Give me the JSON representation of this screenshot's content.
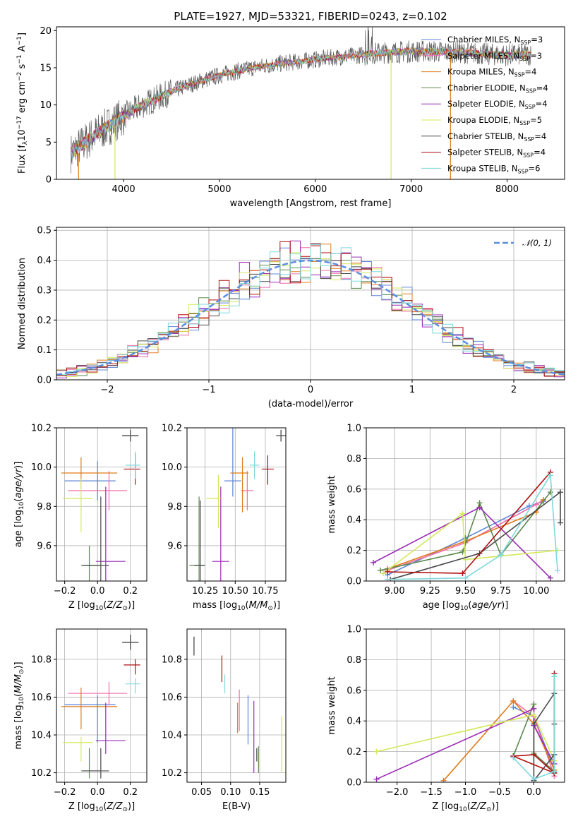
{
  "figure": {
    "title": "PLATE=1927, MJD=53321, FIBERID=0243, z=0.102"
  },
  "models": [
    {
      "name": "Chabrier MILES",
      "nssp": "3",
      "color": "#5b84d6"
    },
    {
      "name": "Salpeter MILES",
      "nssp": "3",
      "color": "#f06ea9"
    },
    {
      "name": "Kroupa MILES",
      "nssp": "4",
      "color": "#e07b1a"
    },
    {
      "name": "Chabrier ELODIE",
      "nssp": "4",
      "color": "#5c8a4e"
    },
    {
      "name": "Salpeter ELODIE",
      "nssp": "4",
      "color": "#9a2cb5"
    },
    {
      "name": "Kroupa ELODIE",
      "nssp": "5",
      "color": "#d4e85a"
    },
    {
      "name": "Chabrier STELIB",
      "nssp": "4",
      "color": "#4a4a4a"
    },
    {
      "name": "Salpeter STELIB",
      "nssp": "4",
      "color": "#b00f0f"
    },
    {
      "name": "Kroupa STELIB",
      "nssp": "6",
      "color": "#7fd8dc"
    }
  ],
  "chart_data": [
    {
      "id": "spectrum",
      "type": "line",
      "xlabel": "wavelength [Angstrom, rest frame]",
      "ylabel": "Flux [fλ10⁻¹⁷ erg cm⁻² s⁻¹ A⁻¹]",
      "xlim": [
        3300,
        8600
      ],
      "ylim": [
        0,
        20.5
      ],
      "xticks": [
        4000,
        5000,
        6000,
        7000,
        8000
      ],
      "yticks": [
        0,
        5,
        10,
        15,
        20
      ],
      "legend_position": "right",
      "continuum": {
        "x": [
          3450,
          3550,
          3700,
          3850,
          4000,
          4200,
          4400,
          4600,
          4800,
          5000,
          5200,
          5400,
          5600,
          5800,
          6000,
          6200,
          6400,
          6600,
          6800,
          7000,
          7200,
          7400,
          7600,
          7800,
          8000,
          8250
        ],
        "y": [
          3.5,
          4.5,
          6,
          7.2,
          8.5,
          10,
          11.2,
          12.3,
          13.2,
          14,
          14.6,
          15.1,
          15.5,
          15.8,
          16.1,
          16.4,
          16.6,
          16.9,
          17.1,
          17.2,
          17.2,
          17.1,
          17,
          16.8,
          16.7,
          16.8
        ]
      },
      "spikes": [
        {
          "x": 3530,
          "y0": 3.5,
          "y1": 0
        },
        {
          "x": 3910,
          "y0": 7,
          "y1": 0
        },
        {
          "x": 6790,
          "y0": 17,
          "y1": 0
        },
        {
          "x": 7410,
          "y0": 17,
          "y1": 0
        }
      ]
    },
    {
      "id": "residuals",
      "type": "bar",
      "xlabel": "(data-model)/error",
      "ylabel": "Normed distribution",
      "xlim": [
        -2.5,
        2.5
      ],
      "ylim": [
        0,
        0.51
      ],
      "xticks": [
        -2,
        -1,
        0,
        1,
        2
      ],
      "yticks": [
        0.0,
        0.1,
        0.2,
        0.3,
        0.4,
        0.5
      ],
      "legend": "N(0,1)",
      "legend_position": "top-right",
      "bin_edges_start": -2.5,
      "bin_width": 0.1,
      "bins": 50
    },
    {
      "id": "age-vs-Z",
      "type": "scatter",
      "xlabel": "Z [log10(Z/Z⊙)]",
      "ylabel": "age  [log10(age/yr)]",
      "xlim": [
        -0.25,
        0.3
      ],
      "ylim": [
        9.42,
        10.2
      ],
      "xticks": [
        -0.2,
        0.0,
        0.2
      ],
      "yticks": [
        9.6,
        9.8,
        10.0,
        10.2
      ],
      "points": [
        {
          "x": 0.0,
          "xerr": [
            0.2,
            0.11
          ],
          "y": 9.93,
          "yerr": [
            0.1,
            0.1
          ],
          "m": 0
        },
        {
          "x": 0.07,
          "xerr": [
            0.25,
            0.11
          ],
          "y": 9.88,
          "yerr": [
            0.1,
            0.1
          ],
          "m": 1
        },
        {
          "x": -0.1,
          "xerr": [
            0.12,
            0.22
          ],
          "y": 9.97,
          "yerr": [
            0.08,
            0.08
          ],
          "m": 2
        },
        {
          "x": -0.05,
          "xerr": [
            0.05,
            0.07
          ],
          "y": 9.5,
          "yerr": [
            0.1,
            0.1
          ],
          "m": 3
        },
        {
          "x": 0.05,
          "xerr": [
            0.06,
            0.12
          ],
          "y": 9.52,
          "yerr": [
            0.12,
            0.38
          ],
          "m": 4
        },
        {
          "x": -0.1,
          "xerr": [
            0.11,
            0.07
          ],
          "y": 9.84,
          "yerr": [
            0.17,
            0.1
          ],
          "m": 5
        },
        {
          "x": 0.02,
          "xerr": [
            0.11,
            0.05
          ],
          "y": 9.5,
          "yerr": [
            0.12,
            0.35
          ],
          "m": 6
        },
        {
          "x": 0.23,
          "xerr": [
            0.07,
            0.03
          ],
          "y": 9.99,
          "yerr": [
            0.08,
            0.08
          ],
          "m": 7
        },
        {
          "x": 0.23,
          "xerr": [
            0.06,
            0.03
          ],
          "y": 10.01,
          "yerr": [
            0.07,
            0.07
          ],
          "m": 8
        }
      ],
      "typical_error": {
        "x": 0.2,
        "y": 10.16,
        "xerr": 0.05,
        "yerr": 0.03
      }
    },
    {
      "id": "age-vs-mass",
      "type": "scatter",
      "xlabel": "mass [log10(M/M⊙)]",
      "ylabel": "",
      "xlim": [
        10.1,
        10.92
      ],
      "ylim": [
        9.42,
        10.2
      ],
      "xticks": [
        10.25,
        10.5,
        10.75
      ],
      "yticks": [
        9.6,
        9.8,
        10.0,
        10.2
      ],
      "points": [
        {
          "x": 10.48,
          "xerr": [
            0.07,
            0.07
          ],
          "y": 9.93,
          "yerr": [
            0.08,
            0.32
          ],
          "m": 0
        },
        {
          "x": 10.6,
          "xerr": [
            0.05,
            0.05
          ],
          "y": 9.88,
          "yerr": [
            0.1,
            0.1
          ],
          "m": 1
        },
        {
          "x": 10.56,
          "xerr": [
            0.1,
            0.05
          ],
          "y": 9.97,
          "yerr": [
            0.2,
            0.08
          ],
          "m": 2
        },
        {
          "x": 10.2,
          "xerr": [
            0.08,
            0.05
          ],
          "y": 9.5,
          "yerr": [
            0.12,
            0.35
          ],
          "m": 3
        },
        {
          "x": 10.38,
          "xerr": [
            0.07,
            0.07
          ],
          "y": 9.52,
          "yerr": [
            0.1,
            0.38
          ],
          "m": 4
        },
        {
          "x": 10.36,
          "xerr": [
            0.1,
            0.02
          ],
          "y": 9.84,
          "yerr": [
            0.15,
            0.12
          ],
          "m": 5
        },
        {
          "x": 10.21,
          "xerr": [
            0.05,
            0.04
          ],
          "y": 9.5,
          "yerr": [
            0.12,
            0.33
          ],
          "m": 6
        },
        {
          "x": 10.77,
          "xerr": [
            0.05,
            0.05
          ],
          "y": 9.99,
          "yerr": [
            0.08,
            0.07
          ],
          "m": 7
        },
        {
          "x": 10.66,
          "xerr": [
            0.04,
            0.04
          ],
          "y": 10.01,
          "yerr": [
            0.07,
            0.07
          ],
          "m": 8
        }
      ],
      "typical_error": {
        "x": 10.88,
        "y": 10.16,
        "xerr": 0.04,
        "yerr": 0.03
      }
    },
    {
      "id": "weight-vs-age",
      "type": "line",
      "xlabel": "age  [log10(age/yr)]",
      "ylabel": "mass weight",
      "xlim": [
        8.8,
        10.2
      ],
      "ylim": [
        0,
        1.0
      ],
      "xticks": [
        9.0,
        9.25,
        9.5,
        9.75,
        10.0
      ],
      "yticks": [
        0.0,
        0.2,
        0.4,
        0.6,
        0.8,
        1.0
      ],
      "series": [
        {
          "m": 0,
          "x": [
            8.95,
            9.5,
            9.95,
            10.05
          ],
          "y": [
            0.04,
            0.28,
            0.49,
            0.52
          ]
        },
        {
          "m": 1,
          "x": [
            8.95,
            9.5,
            10.0,
            10.05
          ],
          "y": [
            0.07,
            0.25,
            0.5,
            0.53
          ]
        },
        {
          "m": 2,
          "x": [
            8.95,
            9.5,
            10.0,
            10.05
          ],
          "y": [
            0.08,
            0.26,
            0.45,
            0.53
          ]
        },
        {
          "m": 3,
          "x": [
            8.9,
            9.48,
            9.6,
            9.75,
            10.1
          ],
          "y": [
            0.07,
            0.19,
            0.51,
            0.17,
            0.58
          ]
        },
        {
          "m": 4,
          "x": [
            8.85,
            9.6,
            10.1
          ],
          "y": [
            0.12,
            0.48,
            0.02
          ]
        },
        {
          "m": 5,
          "x": [
            8.92,
            9.48,
            9.5,
            10.15
          ],
          "y": [
            0.05,
            0.44,
            0.14,
            0.2
          ]
        },
        {
          "m": 6,
          "x": [
            8.97,
            9.6,
            10.17,
            10.17
          ],
          "y": [
            0.01,
            0.18,
            0.58,
            0.38
          ]
        },
        {
          "m": 7,
          "x": [
            8.95,
            9.48,
            10.1
          ],
          "y": [
            0.06,
            0.05,
            0.71
          ]
        },
        {
          "m": 8,
          "x": [
            8.95,
            9.5,
            9.75,
            10.1,
            10.15
          ],
          "y": [
            0.01,
            0.02,
            0.17,
            0.69,
            0.07
          ]
        }
      ]
    },
    {
      "id": "mass-vs-Z",
      "type": "scatter",
      "xlabel": "Z [log10(Z/Z⊙)]",
      "ylabel": "mass [log10(M/M⊙)]",
      "xlim": [
        -0.25,
        0.3
      ],
      "ylim": [
        10.15,
        10.96
      ],
      "xticks": [
        -0.2,
        0.0,
        0.2
      ],
      "yticks": [
        10.2,
        10.4,
        10.6,
        10.8
      ],
      "points": [
        {
          "x": 0.0,
          "xerr": [
            0.2,
            0.11
          ],
          "y": 10.56,
          "yerr": [
            0.2,
            0.05
          ],
          "m": 0
        },
        {
          "x": 0.07,
          "xerr": [
            0.25,
            0.11
          ],
          "y": 10.62,
          "yerr": [
            0.06,
            0.06
          ],
          "m": 1
        },
        {
          "x": -0.1,
          "xerr": [
            0.12,
            0.22
          ],
          "y": 10.55,
          "yerr": [
            0.12,
            0.1
          ],
          "m": 2
        },
        {
          "x": -0.05,
          "xerr": [
            0.05,
            0.07
          ],
          "y": 10.21,
          "yerr": [
            0.04,
            0.12
          ],
          "m": 3
        },
        {
          "x": 0.05,
          "xerr": [
            0.06,
            0.12
          ],
          "y": 10.37,
          "yerr": [
            0.07,
            0.2
          ],
          "m": 4
        },
        {
          "x": -0.1,
          "xerr": [
            0.11,
            0.07
          ],
          "y": 10.36,
          "yerr": [
            0.1,
            0.03
          ],
          "m": 5
        },
        {
          "x": 0.02,
          "xerr": [
            0.11,
            0.05
          ],
          "y": 10.21,
          "yerr": [
            0.04,
            0.12
          ],
          "m": 6
        },
        {
          "x": 0.23,
          "xerr": [
            0.07,
            0.03
          ],
          "y": 10.77,
          "yerr": [
            0.05,
            0.03
          ],
          "m": 7
        },
        {
          "x": 0.23,
          "xerr": [
            0.06,
            0.03
          ],
          "y": 10.67,
          "yerr": [
            0.05,
            0.03
          ],
          "m": 8
        }
      ],
      "typical_error": {
        "x": 0.2,
        "y": 10.89,
        "xerr": 0.05,
        "yerr": 0.04
      }
    },
    {
      "id": "mass-vs-EBV",
      "type": "scatter",
      "xlabel": "E(B-V)",
      "ylabel": "",
      "xlim": [
        0.025,
        0.195
      ],
      "ylim": [
        10.15,
        10.96
      ],
      "xticks": [
        0.05,
        0.1,
        0.15
      ],
      "yticks": [
        10.2,
        10.4,
        10.6,
        10.8
      ],
      "points": [
        {
          "x": 0.13,
          "y": 10.48,
          "yerr": [
            0.13,
            0.13
          ],
          "m": 0
        },
        {
          "x": 0.115,
          "y": 10.52,
          "yerr": [
            0.1,
            0.12
          ],
          "m": 1
        },
        {
          "x": 0.112,
          "y": 10.49,
          "yerr": [
            0.08,
            0.08
          ],
          "m": 2
        },
        {
          "x": 0.148,
          "y": 10.27,
          "yerr": [
            0.07,
            0.07
          ],
          "m": 3
        },
        {
          "x": 0.14,
          "y": 10.39,
          "yerr": [
            0.19,
            0.19
          ],
          "m": 4
        },
        {
          "x": 0.188,
          "y": 10.35,
          "yerr": [
            0.15,
            0.15
          ],
          "m": 5
        },
        {
          "x": 0.145,
          "y": 10.3,
          "yerr": [
            0.04,
            0.03
          ],
          "m": 6
        },
        {
          "x": 0.085,
          "y": 10.75,
          "yerr": [
            0.07,
            0.07
          ],
          "m": 7
        },
        {
          "x": 0.09,
          "y": 10.67,
          "yerr": [
            0.05,
            0.05
          ],
          "m": 8
        }
      ],
      "typical_error": {
        "x": 0.037,
        "y": 10.87,
        "yerr": 0.05
      }
    },
    {
      "id": "weight-vs-Z",
      "type": "line",
      "xlabel": "Z [log10(Z/Z⊙)]",
      "ylabel": "mass weight",
      "xlim": [
        -2.45,
        0.45
      ],
      "ylim": [
        0,
        1.0
      ],
      "xticks": [
        -2.0,
        -1.5,
        -1.0,
        -0.5,
        0.0
      ],
      "yticks": [
        0.0,
        0.2,
        0.4,
        0.6,
        0.8,
        1.0
      ],
      "series": [
        {
          "m": 0,
          "x": [
            -0.3,
            0.0,
            0.3
          ],
          "y": [
            0.49,
            0.43,
            0.08
          ]
        },
        {
          "m": 1,
          "x": [
            -0.3,
            0.0,
            0.3
          ],
          "y": [
            0.53,
            0.43,
            0.04
          ]
        },
        {
          "m": 2,
          "x": [
            -1.32,
            -0.3,
            0.0,
            0.3
          ],
          "y": [
            0.01,
            0.53,
            0.38,
            0.08
          ]
        },
        {
          "m": 3,
          "x": [
            -0.3,
            0.0,
            0.0,
            0.3
          ],
          "y": [
            0.17,
            0.51,
            0.19,
            0.07
          ]
        },
        {
          "m": 4,
          "x": [
            -2.3,
            0.0,
            0.0,
            0.3
          ],
          "y": [
            0.02,
            0.48,
            0.37,
            0.12
          ]
        },
        {
          "m": 5,
          "x": [
            -2.3,
            0.0,
            0.3
          ],
          "y": [
            0.2,
            0.44,
            0.14
          ]
        },
        {
          "m": 6,
          "x": [
            0.3,
            0.3,
            0.0,
            0.0,
            0.3
          ],
          "y": [
            0.38,
            0.58,
            0.38,
            0.01,
            0.18
          ]
        },
        {
          "m": 7,
          "x": [
            0.3,
            0.3,
            0.0,
            -0.3,
            0.3
          ],
          "y": [
            0.71,
            0.06,
            0.18,
            0.17,
            0.06
          ]
        },
        {
          "m": 8,
          "x": [
            0.3,
            0.3,
            0.0,
            -0.3
          ],
          "y": [
            0.69,
            0.07,
            0.02,
            0.16
          ]
        }
      ]
    }
  ]
}
